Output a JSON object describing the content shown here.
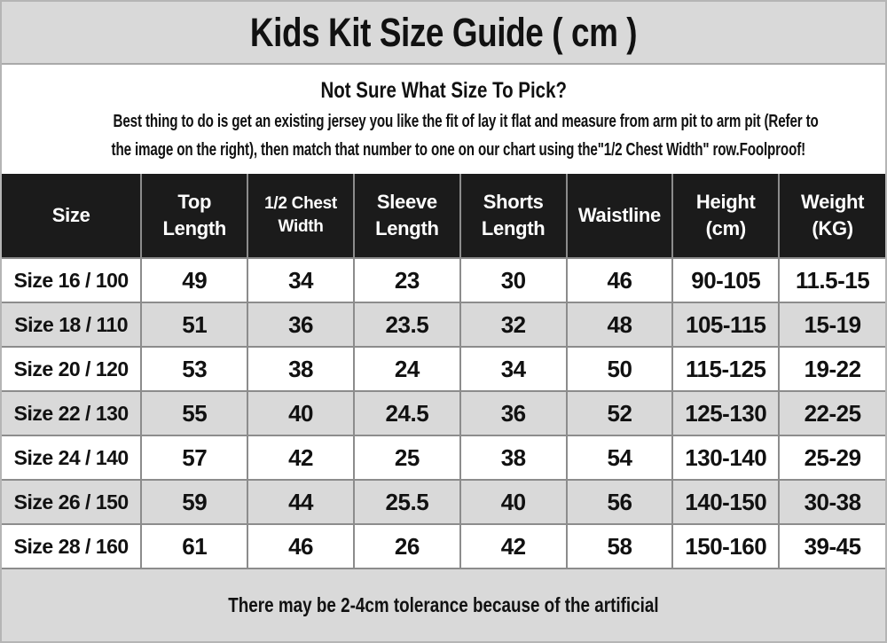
{
  "title": "Kids Kit Size Guide ( cm )",
  "intro": {
    "heading": "Not Sure What Size To Pick?",
    "body_lines": [
      "Best thing to do is get an existing jersey you like the fit of lay it flat and measure from arm pit to arm pit (Refer to",
      "the image on the right), then match that number to one on our chart using the\"1/2 Chest Width\" row.Foolproof!"
    ]
  },
  "table": {
    "columns": [
      "Size",
      "Top Length",
      "1/2 Chest Width",
      "Sleeve Length",
      "Shorts Length",
      "Waistline",
      "Height (cm)",
      "Weight (KG)"
    ],
    "rows": [
      [
        "Size 16 / 100",
        "49",
        "34",
        "23",
        "30",
        "46",
        "90-105",
        "11.5-15"
      ],
      [
        "Size 18 / 110",
        "51",
        "36",
        "23.5",
        "32",
        "48",
        "105-115",
        "15-19"
      ],
      [
        "Size 20 / 120",
        "53",
        "38",
        "24",
        "34",
        "50",
        "115-125",
        "19-22"
      ],
      [
        "Size 22 / 130",
        "55",
        "40",
        "24.5",
        "36",
        "52",
        "125-130",
        "22-25"
      ],
      [
        "Size 24 / 140",
        "57",
        "42",
        "25",
        "38",
        "54",
        "130-140",
        "25-29"
      ],
      [
        "Size 26 / 150",
        "59",
        "44",
        "25.5",
        "40",
        "56",
        "140-150",
        "30-38"
      ],
      [
        "Size 28 / 160",
        "61",
        "46",
        "26",
        "42",
        "58",
        "150-160",
        "39-45"
      ]
    ]
  },
  "footer": {
    "note": "There may be 2-4cm tolerance because of the artificial"
  },
  "colors": {
    "panel_bg": "#d9d9d9",
    "header_bg": "#1b1b1b",
    "header_text": "#ffffff",
    "row_alt_bg": "#d9d9d9",
    "grid_border": "#8c8c8c",
    "outer_border": "#b5b5b5",
    "text": "#111111"
  }
}
